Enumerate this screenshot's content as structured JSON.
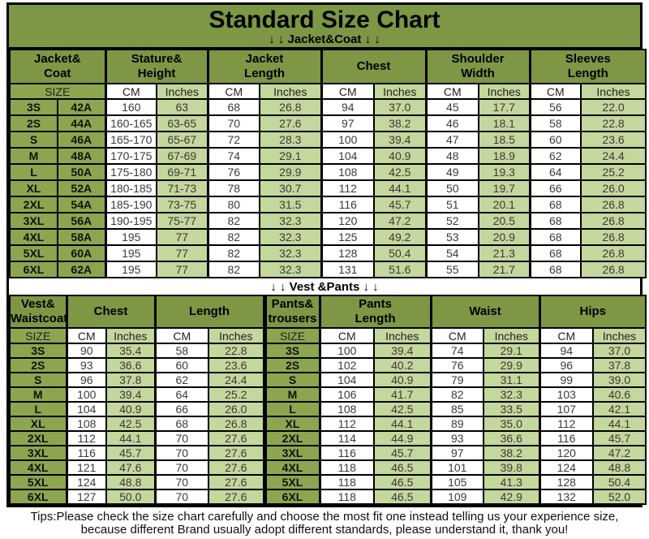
{
  "header": {
    "title": "Standard Size Chart",
    "jacket_section": "↓ ↓  Jacket&Coat ↓ ↓"
  },
  "vest_section": "↓ ↓  Vest &Pants ↓ ↓",
  "tips": {
    "line1": "Tips:Please check the size chart carefully and choose the most fit one instead telling us your experience size,",
    "line2": "because different Brand usually adopt different standards, please understand it, thank you!"
  },
  "colors": {
    "header_green": "#7d9745",
    "size_green": "#8ca64f",
    "light_green": "#c4d79c",
    "border_black": "#000000",
    "background_white": "#ffffff"
  },
  "jacket_table": {
    "groups": [
      "Jacket&\nCoat",
      "Stature&\nHeight",
      "Jacket\nLength",
      "Chest",
      "Shoulder\nWidth",
      "Sleeves\nLength"
    ],
    "subheader": [
      "SIZE",
      "CM",
      "Inches",
      "CM",
      "Inches",
      "CM",
      "Inches",
      "CM",
      "Inches",
      "CM",
      "Inches"
    ],
    "rows": [
      [
        "3S",
        "42A",
        "160",
        "63",
        "68",
        "26.8",
        "94",
        "37.0",
        "45",
        "17.7",
        "56",
        "22.0"
      ],
      [
        "2S",
        "44A",
        "160-165",
        "63-65",
        "70",
        "27.6",
        "97",
        "38.2",
        "46",
        "18.1",
        "58",
        "22.8"
      ],
      [
        "S",
        "46A",
        "165-170",
        "65-67",
        "72",
        "28.3",
        "100",
        "39.4",
        "47",
        "18.5",
        "60",
        "23.6"
      ],
      [
        "M",
        "48A",
        "170-175",
        "67-69",
        "74",
        "29.1",
        "104",
        "40.9",
        "48",
        "18.9",
        "62",
        "24.4"
      ],
      [
        "L",
        "50A",
        "175-180",
        "69-71",
        "76",
        "29.9",
        "108",
        "42.5",
        "49",
        "19.3",
        "64",
        "25.2"
      ],
      [
        "XL",
        "52A",
        "180-185",
        "71-73",
        "78",
        "30.7",
        "112",
        "44.1",
        "50",
        "19.7",
        "66",
        "26.0"
      ],
      [
        "2XL",
        "54A",
        "185-190",
        "73-75",
        "80",
        "31.5",
        "116",
        "45.7",
        "51",
        "20.1",
        "68",
        "26.8"
      ],
      [
        "3XL",
        "56A",
        "190-195",
        "75-77",
        "82",
        "32.3",
        "120",
        "47.2",
        "52",
        "20.5",
        "68",
        "26.8"
      ],
      [
        "4XL",
        "58A",
        "195",
        "77",
        "82",
        "32.3",
        "125",
        "49.2",
        "53",
        "20.9",
        "68",
        "26.8"
      ],
      [
        "5XL",
        "60A",
        "195",
        "77",
        "82",
        "32.3",
        "128",
        "50.4",
        "54",
        "21.3",
        "68",
        "26.8"
      ],
      [
        "6XL",
        "62A",
        "195",
        "77",
        "82",
        "32.3",
        "131",
        "51.6",
        "55",
        "21.7",
        "68",
        "26.8"
      ]
    ]
  },
  "vest_table": {
    "groups": [
      "Vest&\nWaistcoat",
      "Chest",
      "Length",
      "Pants&\ntrousers",
      "Pants\nLength",
      "Waist",
      "Hips"
    ],
    "subheader": [
      "SIZE",
      "CM",
      "Inches",
      "CM",
      "Inches",
      "SIZE",
      "CM",
      "Inches",
      "CM",
      "Inches",
      "CM",
      "Inches"
    ],
    "rows": [
      [
        "3S",
        "90",
        "35.4",
        "58",
        "22.8",
        "3S",
        "100",
        "39.4",
        "74",
        "29.1",
        "94",
        "37.0"
      ],
      [
        "2S",
        "93",
        "36.6",
        "60",
        "23.6",
        "2S",
        "102",
        "40.2",
        "76",
        "29.9",
        "96",
        "37.8"
      ],
      [
        "S",
        "96",
        "37.8",
        "62",
        "24.4",
        "S",
        "104",
        "40.9",
        "79",
        "31.1",
        "99",
        "39.0"
      ],
      [
        "M",
        "100",
        "39.4",
        "64",
        "25.2",
        "M",
        "106",
        "41.7",
        "82",
        "32.3",
        "103",
        "40.6"
      ],
      [
        "L",
        "104",
        "40.9",
        "66",
        "26.0",
        "L",
        "108",
        "42.5",
        "85",
        "33.5",
        "107",
        "42.1"
      ],
      [
        "XL",
        "108",
        "42.5",
        "68",
        "26.8",
        "XL",
        "112",
        "44.1",
        "89",
        "35.0",
        "112",
        "44.1"
      ],
      [
        "2XL",
        "112",
        "44.1",
        "70",
        "27.6",
        "2XL",
        "114",
        "44.9",
        "93",
        "36.6",
        "116",
        "45.7"
      ],
      [
        "3XL",
        "116",
        "45.7",
        "70",
        "27.6",
        "3XL",
        "116",
        "45.7",
        "97",
        "38.2",
        "120",
        "47.2"
      ],
      [
        "4XL",
        "121",
        "47.6",
        "70",
        "27.6",
        "4XL",
        "118",
        "46.5",
        "101",
        "39.8",
        "124",
        "48.8"
      ],
      [
        "5XL",
        "124",
        "48.8",
        "70",
        "27.6",
        "5XL",
        "118",
        "46.5",
        "105",
        "41.3",
        "128",
        "50.4"
      ],
      [
        "6XL",
        "127",
        "50.0",
        "70",
        "27.6",
        "6XL",
        "118",
        "46.5",
        "109",
        "42.9",
        "132",
        "52.0"
      ]
    ]
  }
}
